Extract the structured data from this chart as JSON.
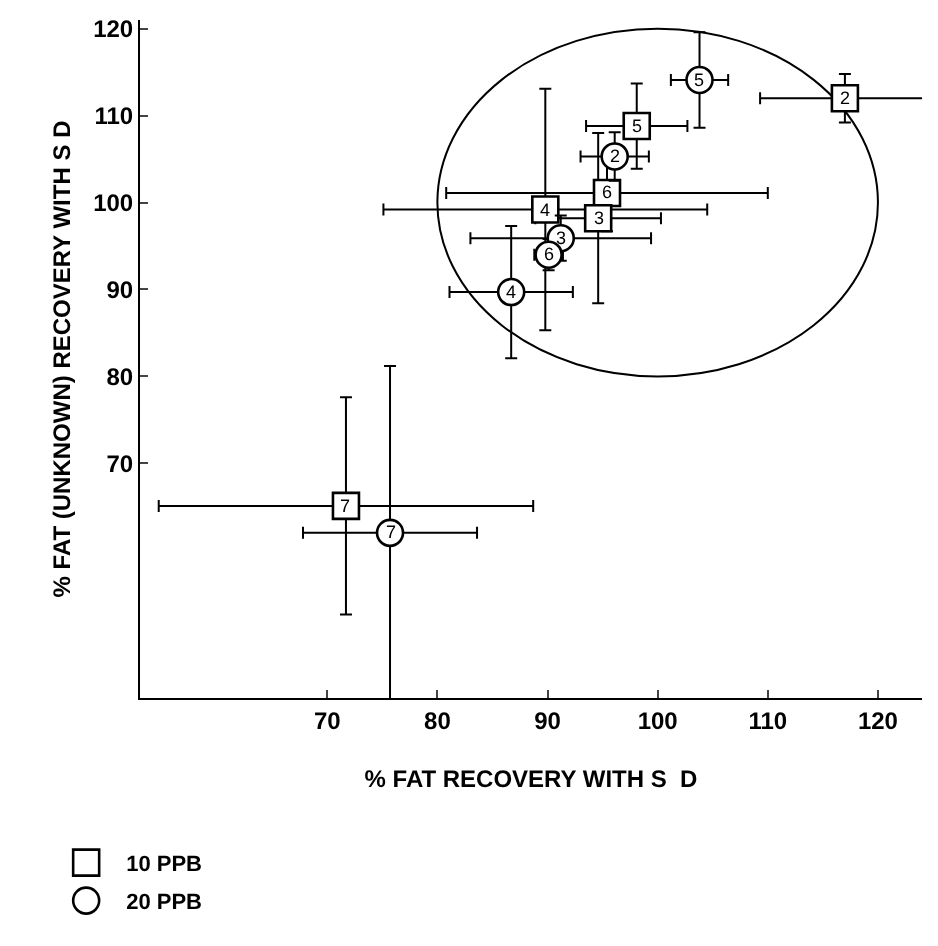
{
  "chart_data": {
    "type": "scatter",
    "xlabel": "% FAT RECOVERY WITH S  D",
    "ylabel": "% FAT (UNKNOWN) RECOVERY WITH S D",
    "xlim": [
      53,
      124
    ],
    "ylim": [
      43,
      121
    ],
    "xticks": [
      70,
      80,
      90,
      100,
      110,
      120
    ],
    "yticks": [
      70,
      80,
      90,
      100,
      110,
      120
    ],
    "grid": false,
    "legend": "bottom left",
    "series": [
      {
        "name": "10 PPB",
        "marker": "square",
        "color": "#000000",
        "x": [
          117,
          98.1,
          95.4,
          94.6,
          89.8,
          71.7
        ],
        "values": [
          112,
          108.8,
          101.1,
          98.2,
          99.2,
          65.1
        ],
        "errors": [
          2.8,
          4.9,
          4.4,
          9.8,
          13.9,
          12.5
        ],
        "xerrors": [
          7.7,
          4.6,
          14.6,
          5.7,
          14.7,
          17
        ]
      },
      {
        "name": "20 PPB",
        "marker": "circle",
        "color": "#000000",
        "x": [
          103.8,
          96.1,
          91.2,
          90.1,
          86.7,
          75.7
        ],
        "values": [
          114.1,
          105.3,
          95.9,
          94,
          89.7,
          62
        ],
        "errors": [
          5.5,
          2.8,
          2.6,
          1.8,
          7.6,
          19.2
        ],
        "xerrors": [
          2.6,
          3.1,
          8.2,
          1.3,
          5.6,
          7.9
        ]
      }
    ],
    "annotations": [
      {
        "text": "2",
        "x": 117,
        "y": 112
      },
      {
        "text": "5",
        "x": 98.1,
        "y": 108.8
      },
      {
        "text": "6",
        "x": 95.4,
        "y": 101.1
      },
      {
        "text": "3",
        "x": 94.6,
        "y": 98.2
      },
      {
        "text": "4",
        "x": 89.8,
        "y": 99.2
      },
      {
        "text": "7",
        "x": 71.7,
        "y": 65.1
      },
      {
        "text": "5",
        "x": 103.8,
        "y": 114.1
      },
      {
        "text": "2",
        "x": 96.1,
        "y": 105.3
      },
      {
        "text": "3",
        "x": 91.2,
        "y": 95.9
      },
      {
        "text": "6",
        "x": 90.1,
        "y": 94
      },
      {
        "text": "4",
        "x": 86.7,
        "y": 89.7
      },
      {
        "text": "7",
        "x": 75.7,
        "y": 62
      }
    ]
  }
}
